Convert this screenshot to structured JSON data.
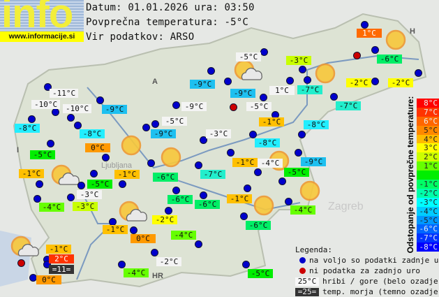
{
  "logo": {
    "word": "info",
    "url": "www.informacije.si"
  },
  "header": {
    "date_line": "Datum: 01.01.2026 ura: 03:50",
    "avg_line": "Povprečna temperatura: -5°C",
    "source_line": "Vir podatkov: ARSO"
  },
  "stations": [
    {
      "t": "1°C",
      "c": "#ff6a00"
    },
    {
      "t": "-5°C",
      "c": "#f4f4f4"
    },
    {
      "t": "-3°C",
      "c": "#c8ff00"
    },
    {
      "t": "-6°C",
      "c": "#00ee66"
    },
    {
      "t": "-9°C",
      "c": "#1ec0f0"
    },
    {
      "t": "-9°C",
      "c": "#1ec0f0"
    },
    {
      "t": "1°C",
      "c": "#f4f4f4"
    },
    {
      "t": "-7°C",
      "c": "#22eecc"
    },
    {
      "t": "-2°C",
      "c": "#ffff00"
    },
    {
      "t": "-2°C",
      "c": "#ffff00"
    },
    {
      "t": "-11°C",
      "c": "#f4f4f4"
    },
    {
      "t": "-10°C",
      "c": "#f4f4f4"
    },
    {
      "t": "-10°C",
      "c": "#f4f4f4"
    },
    {
      "t": "-9°C",
      "c": "#1ec0f0"
    },
    {
      "t": "-9°C",
      "c": "#f4f4f4"
    },
    {
      "t": "-5°C",
      "c": "#f4f4f4"
    },
    {
      "t": "-7°C",
      "c": "#22eecc"
    },
    {
      "t": "-8°C",
      "c": "#22eeff"
    },
    {
      "t": "-1°C",
      "c": "#ffc000"
    },
    {
      "t": "-8°C",
      "c": "#22eeff"
    },
    {
      "t": "-8°C",
      "c": "#22eeff"
    },
    {
      "t": "-9°C",
      "c": "#1ec0f0"
    },
    {
      "t": "-5°C",
      "c": "#f4f4f4"
    },
    {
      "t": "-3°C",
      "c": "#f4f4f4"
    },
    {
      "t": "0°C",
      "c": "#ff9900"
    },
    {
      "t": "-5°C",
      "c": "#00ee00"
    },
    {
      "t": "-8°C",
      "c": "#22eeff"
    },
    {
      "t": "-1°C",
      "c": "#ffc000"
    },
    {
      "t": "-4°C",
      "c": "#f4f4f4"
    },
    {
      "t": "-9°C",
      "c": "#1ec0f0"
    },
    {
      "t": "-5°C",
      "c": "#00ee00"
    },
    {
      "t": "-1°C",
      "c": "#ffc000"
    },
    {
      "t": "-1°C",
      "c": "#ffc000"
    },
    {
      "t": "-6°C",
      "c": "#00ee66"
    },
    {
      "t": "-7°C",
      "c": "#22eecc"
    },
    {
      "t": "-5°C",
      "c": "#00ee00"
    },
    {
      "t": "-3°C",
      "c": "#f4f4f4"
    },
    {
      "t": "-4°C",
      "c": "#66ff00"
    },
    {
      "t": "-3°C",
      "c": "#c8ff00"
    },
    {
      "t": "-6°C",
      "c": "#00ee66"
    },
    {
      "t": "-6°C",
      "c": "#00ee66"
    },
    {
      "t": "-1°C",
      "c": "#ffc000"
    },
    {
      "t": "-4°C",
      "c": "#66ff00"
    },
    {
      "t": "-2°C",
      "c": "#ffff00"
    },
    {
      "t": "-1°C",
      "c": "#ffc000"
    },
    {
      "t": "0°C",
      "c": "#ff9900"
    },
    {
      "t": "-4°C",
      "c": "#66ff00"
    },
    {
      "t": "-6°C",
      "c": "#00ee66"
    },
    {
      "t": "-1°C",
      "c": "#ffc000"
    },
    {
      "t": "2°C",
      "c": "#ff3300"
    },
    {
      "t": "=11=",
      "c": "#333333"
    },
    {
      "t": "0°C",
      "c": "#ff9900"
    },
    {
      "t": "-2°C",
      "c": "#f4f4f4"
    },
    {
      "t": "-4°C",
      "c": "#66ff00"
    },
    {
      "t": "-5°C",
      "c": "#00ee00"
    }
  ],
  "scale": {
    "title": "Odstopanje od povprečne temperature:",
    "rows": [
      {
        "t": "8°C",
        "c": "#ff0000"
      },
      {
        "t": "7°C",
        "c": "#ff3300"
      },
      {
        "t": "6°C",
        "c": "#ff6600"
      },
      {
        "t": "5°C",
        "c": "#ff8800"
      },
      {
        "t": "4°C",
        "c": "#ffbb00"
      },
      {
        "t": "3°C",
        "c": "#ffff00"
      },
      {
        "t": "2°C",
        "c": "#ccff00"
      },
      {
        "t": "1°C",
        "c": "#66ff00"
      },
      {
        "t": "",
        "c": "#00ee00"
      },
      {
        "t": "-1°C",
        "c": "#00ff66"
      },
      {
        "t": "-2°C",
        "c": "#00ffaa"
      },
      {
        "t": "-3°C",
        "c": "#00ffff"
      },
      {
        "t": "-4°C",
        "c": "#00ccff"
      },
      {
        "t": "-5°C",
        "c": "#0099ff"
      },
      {
        "t": "-6°C",
        "c": "#0066ff"
      },
      {
        "t": "-7°C",
        "c": "#0033ff"
      },
      {
        "t": "-8°C",
        "c": "#0000ff"
      }
    ]
  },
  "legend": {
    "title": "Legenda:",
    "blue": "na voljo so podatki zadnje ure",
    "red": "ni podatka za zadnjo uro",
    "white_sample": "25°C",
    "white_text": "hribi / gore (belo ozadje)",
    "dark_sample": "=25=",
    "dark_text": "temp. morja (temno ozadje)"
  },
  "map_labels": {
    "austria": "A",
    "italy": "I",
    "croatia": "HR",
    "hungary": "H",
    "zagreb": "Zagreb",
    "ljubljana": "Ljubljana"
  }
}
